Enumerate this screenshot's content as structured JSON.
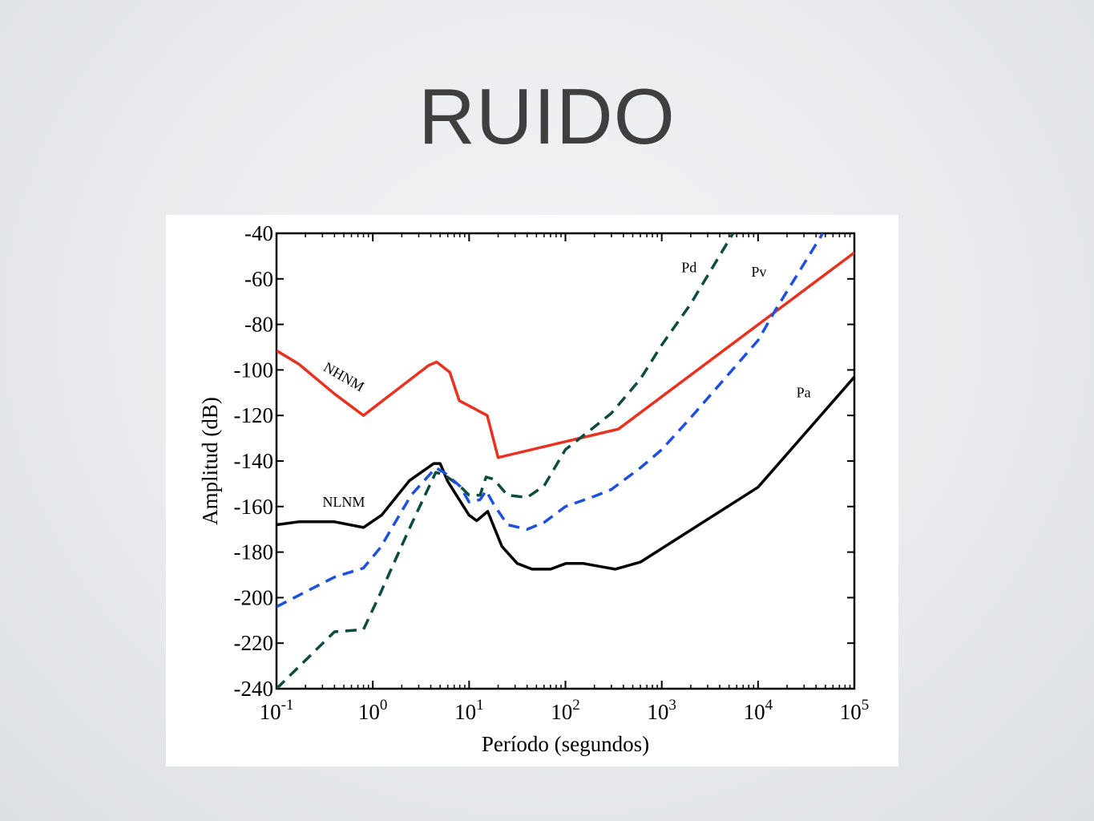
{
  "slide": {
    "title": "RUIDO"
  },
  "chart_data": {
    "type": "line",
    "title": "",
    "xlabel": "Período (segundos)",
    "ylabel": "Amplitud (dB)",
    "xscale": "log",
    "xlim": [
      0.1,
      100000
    ],
    "ylim": [
      -240,
      -40
    ],
    "yticks": [
      -40,
      -60,
      -80,
      -100,
      -120,
      -140,
      -160,
      -180,
      -200,
      -220,
      -240
    ],
    "xticks": [
      {
        "value": 0.1,
        "base": "10",
        "exp": "-1"
      },
      {
        "value": 1,
        "base": "10",
        "exp": "0"
      },
      {
        "value": 10,
        "base": "10",
        "exp": "1"
      },
      {
        "value": 100,
        "base": "10",
        "exp": "2"
      },
      {
        "value": 1000,
        "base": "10",
        "exp": "3"
      },
      {
        "value": 10000,
        "base": "10",
        "exp": "4"
      },
      {
        "value": 100000,
        "base": "10",
        "exp": "5"
      }
    ],
    "grid": false,
    "series": [
      {
        "name": "NHNM",
        "color": "#e8311f",
        "style": "solid",
        "x": [
          0.1,
          0.17,
          0.4,
          0.8,
          3.8,
          4.6,
          6.3,
          7.9,
          15.4,
          20,
          354.8,
          100000
        ],
        "y": [
          -91.5,
          -97.4,
          -110.5,
          -120,
          -98,
          -96.5,
          -101,
          -113.5,
          -120,
          -138.5,
          -126,
          -48.5
        ]
      },
      {
        "name": "NLNM",
        "color": "#000000",
        "style": "solid",
        "x": [
          0.1,
          0.17,
          0.4,
          0.8,
          1.24,
          2.4,
          4.3,
          5,
          6,
          10,
          12,
          15.6,
          21.9,
          31.6,
          45,
          70,
          101,
          154,
          328,
          600,
          10000,
          100000
        ],
        "y": [
          -168,
          -166.7,
          -166.7,
          -169.2,
          -163.7,
          -148.6,
          -141.1,
          -141.1,
          -149,
          -163.8,
          -166.2,
          -162.1,
          -177.5,
          -185,
          -187.5,
          -187.5,
          -185,
          -185,
          -187.5,
          -184.4,
          -151.5,
          -103.1
        ]
      },
      {
        "name": "Pd",
        "color": "#0d4b40",
        "style": "dashed",
        "x": [
          0.1,
          0.4,
          0.8,
          1.2,
          2.5,
          4.5,
          5.5,
          8,
          10,
          13,
          15,
          18,
          25,
          40,
          60,
          100,
          200,
          300,
          600,
          1000,
          2000,
          5500
        ],
        "y": [
          -240,
          -215,
          -214,
          -198,
          -168,
          -145,
          -146,
          -151,
          -155,
          -155,
          -147,
          -148,
          -155,
          -156,
          -151,
          -135,
          -125,
          -119,
          -104,
          -89,
          -71,
          -40
        ]
      },
      {
        "name": "Pv",
        "color": "#1d4fe0",
        "style": "dashed",
        "x": [
          0.1,
          0.4,
          0.8,
          1.2,
          2.5,
          4.5,
          5.5,
          8,
          10,
          13,
          15,
          18,
          25,
          40,
          60,
          100,
          200,
          300,
          600,
          1000,
          2000,
          10000,
          15000,
          47000
        ],
        "y": [
          -204,
          -191,
          -187,
          -178,
          -155,
          -143,
          -145,
          -151,
          -158,
          -157,
          -153,
          -159,
          -168,
          -170,
          -167,
          -160,
          -155.5,
          -152.5,
          -143,
          -135,
          -121,
          -87,
          -74,
          -40
        ]
      }
    ],
    "annotations": [
      {
        "text": "NHNM",
        "x": 0.3,
        "y": -100,
        "rotate": 30
      },
      {
        "text": "NLNM",
        "x": 0.3,
        "y": -160,
        "rotate": 0
      },
      {
        "text": "Pd",
        "x": 1600,
        "y": -57,
        "rotate": 0
      },
      {
        "text": "Pv",
        "x": 8500,
        "y": -59,
        "rotate": 0
      },
      {
        "text": "Pa",
        "x": 25000,
        "y": -112,
        "rotate": 0
      }
    ]
  }
}
